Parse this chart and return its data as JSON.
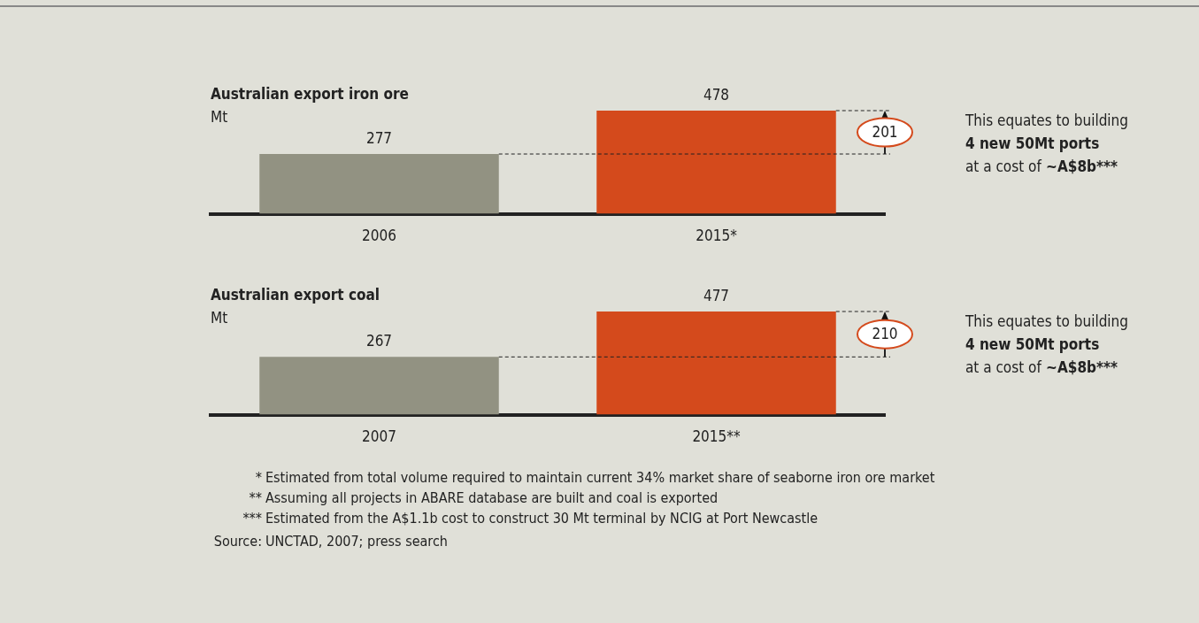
{
  "chart_data": [
    {
      "type": "bar",
      "title": "Australian export iron ore",
      "ylabel": "Mt",
      "categories": [
        "2006",
        "2015*"
      ],
      "values": [
        277,
        478
      ],
      "colors": [
        "#929282",
        "#d44a1c"
      ],
      "data_labels": true,
      "annotations": [
        "201",
        "This equates to building",
        "4 new 50Mt ports",
        "at a cost of",
        "~A$8b***"
      ]
    },
    {
      "type": "bar",
      "title": "Australian export coal",
      "ylabel": "Mt",
      "categories": [
        "2007",
        "2015**"
      ],
      "values": [
        267,
        477
      ],
      "colors": [
        "#929282",
        "#d44a1c"
      ],
      "data_labels": true,
      "annotations": [
        "210",
        "This equates to building",
        "4 new 50Mt ports",
        "at a cost of",
        "~A$8b***",
        "* Estimated from total volume required to maintain current 34% market share of seaborne iron ore market",
        "** Assuming all projects in ABARE database are built and coal is exported",
        "*** Estimated from the A$1.1b cost to construct 30 Mt terminal by NCIG at Port Newcastle",
        "Source: UNCTAD, 2007; press search"
      ]
    }
  ]
}
